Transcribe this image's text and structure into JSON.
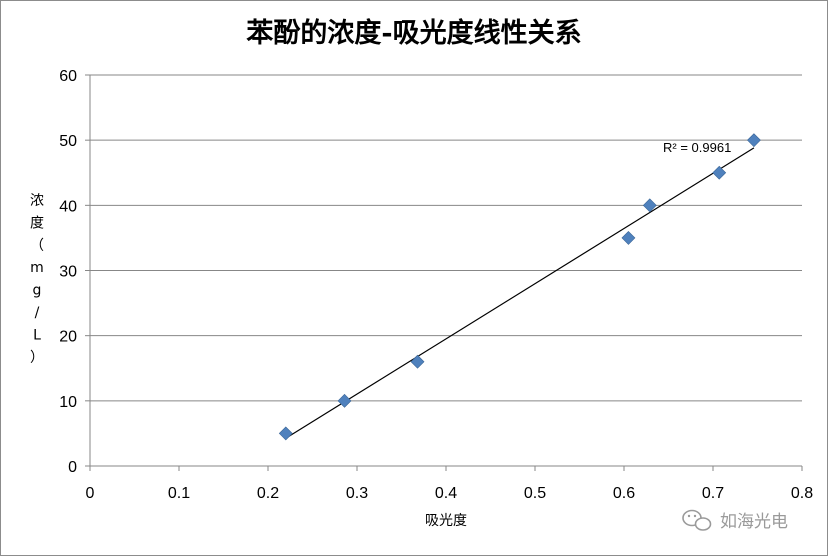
{
  "chart_data": {
    "type": "scatter",
    "title": "苯酚的浓度-吸光度线性关系",
    "xlabel": "吸光度",
    "ylabel_chars": [
      "浓",
      "度",
      "（",
      "m",
      "g",
      "/",
      "L",
      "）"
    ],
    "xlim": [
      0,
      0.8
    ],
    "ylim": [
      0,
      60
    ],
    "xticks": [
      "0",
      "0.1",
      "0.2",
      "0.3",
      "0.4",
      "0.5",
      "0.6",
      "0.7",
      "0.8"
    ],
    "yticks": [
      "0",
      "10",
      "20",
      "30",
      "40",
      "50",
      "60"
    ],
    "grid": "horizontal",
    "series": [
      {
        "marker": "diamond",
        "color": "#4f81bd",
        "points": [
          {
            "x": 0.22,
            "y": 5
          },
          {
            "x": 0.286,
            "y": 10
          },
          {
            "x": 0.368,
            "y": 16
          },
          {
            "x": 0.605,
            "y": 35
          },
          {
            "x": 0.629,
            "y": 40
          },
          {
            "x": 0.707,
            "y": 45
          },
          {
            "x": 0.746,
            "y": 50
          }
        ]
      }
    ],
    "trendline": {
      "type": "linear",
      "color": "#000000",
      "x_range": [
        0.22,
        0.746
      ],
      "r2_label": "R² = 0.9961"
    }
  },
  "watermark": {
    "icon": "wechat-icon",
    "text": "如海光电"
  }
}
